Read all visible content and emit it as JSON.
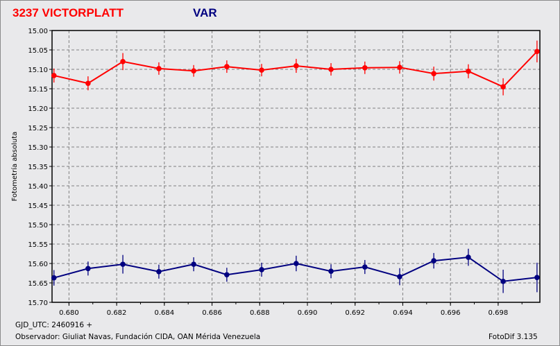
{
  "chart_data": {
    "type": "line",
    "title_left": "3237 VICTORPLATT",
    "title_right": "VAR",
    "ylabel": "Fotometría absoluta",
    "xlabel": "GJD_UTC: 2460916 +",
    "xlim": [
      0.67929,
      0.69975
    ],
    "ylim": [
      15.7,
      15.0
    ],
    "y_inverted": true,
    "grid": true,
    "xticks": [
      "0.680",
      "0.682",
      "0.684",
      "0.686",
      "0.688",
      "0.690",
      "0.692",
      "0.694",
      "0.696",
      "0.698"
    ],
    "yticks": [
      "15.00",
      "15.05",
      "15.10",
      "15.15",
      "15.20",
      "15.25",
      "15.30",
      "15.35",
      "15.40",
      "15.45",
      "15.50",
      "15.55",
      "15.60",
      "15.65",
      "15.70"
    ],
    "x": [
      0.67937,
      0.6808,
      0.68226,
      0.68377,
      0.68523,
      0.68662,
      0.68808,
      0.68953,
      0.69099,
      0.69241,
      0.69387,
      0.6953,
      0.69675,
      0.69821,
      0.69963
    ],
    "series": [
      {
        "color": "#ff0000",
        "values": [
          15.116,
          15.136,
          15.08,
          15.098,
          15.104,
          15.093,
          15.102,
          15.091,
          15.1,
          15.096,
          15.095,
          15.111,
          15.105,
          15.145,
          15.054
        ],
        "errors": [
          0.018,
          0.018,
          0.022,
          0.016,
          0.015,
          0.016,
          0.016,
          0.018,
          0.016,
          0.016,
          0.016,
          0.018,
          0.018,
          0.022,
          0.028
        ]
      },
      {
        "color": "#000080",
        "values": [
          15.637,
          15.613,
          15.602,
          15.621,
          15.602,
          15.629,
          15.616,
          15.6,
          15.62,
          15.609,
          15.634,
          15.593,
          15.584,
          15.646,
          15.636
        ],
        "errors": [
          0.02,
          0.018,
          0.024,
          0.018,
          0.018,
          0.018,
          0.018,
          0.02,
          0.018,
          0.018,
          0.022,
          0.02,
          0.022,
          0.03,
          0.038
        ]
      }
    ]
  },
  "footer": {
    "gjd": "GJD_UTC: 2460916 +",
    "observer": "Observador: Giuliat Navas, Fundación CIDA, OAN Mérida Venezuela",
    "software": "FotoDif 3.135"
  }
}
